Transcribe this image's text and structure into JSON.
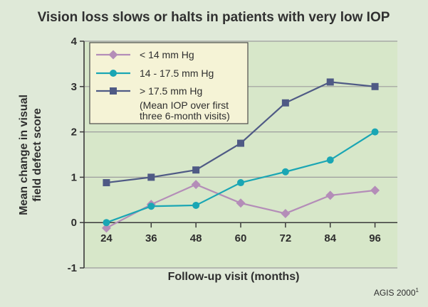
{
  "chart_data": {
    "type": "line",
    "title": "Vision loss slows or halts in patients with very low IOP",
    "xlabel": "Follow-up visit (months)",
    "ylabel": "Mean change in visual field defect score",
    "ylabel_lines": [
      "Mean change in visual",
      "field defect score"
    ],
    "x": [
      24,
      36,
      48,
      60,
      72,
      84,
      96
    ],
    "x_tick_labels": [
      "24",
      "36",
      "48",
      "60",
      "72",
      "84",
      "96"
    ],
    "y_ticks": [
      -1,
      0,
      1,
      2,
      3,
      4
    ],
    "y_tick_labels": [
      "-1",
      "0",
      "1",
      "2",
      "3",
      "4"
    ],
    "xlim": [
      18,
      102
    ],
    "ylim": [
      -1,
      4
    ],
    "grid": "horizontal",
    "series": [
      {
        "name": "< 14 mm Hg",
        "marker": "diamond",
        "color": "#b48db8",
        "values": [
          -0.12,
          0.4,
          0.84,
          0.43,
          0.2,
          0.6,
          0.71
        ]
      },
      {
        "name": "14 - 17.5 mm Hg",
        "marker": "circle",
        "color": "#1aa6b4",
        "values": [
          0.0,
          0.36,
          0.38,
          0.88,
          1.12,
          1.38,
          2.0
        ]
      },
      {
        "name": "> 17.5 mm Hg",
        "marker": "square",
        "color": "#4f5a85",
        "values": [
          0.88,
          1.0,
          1.16,
          1.75,
          2.64,
          3.1,
          3.0
        ]
      }
    ],
    "legend": {
      "placement": "top-left",
      "note_lines": [
        "(Mean IOP over first",
        "three 6-month visits)"
      ]
    },
    "source": "AGIS 2000",
    "source_superscript": "1"
  },
  "colors": {
    "background": "#dfe9d8",
    "plot_background": "#d7e7c9",
    "grid": "#9d9d9d",
    "axis": "#3a3a3a",
    "legend_background": "#f5f3d6"
  }
}
